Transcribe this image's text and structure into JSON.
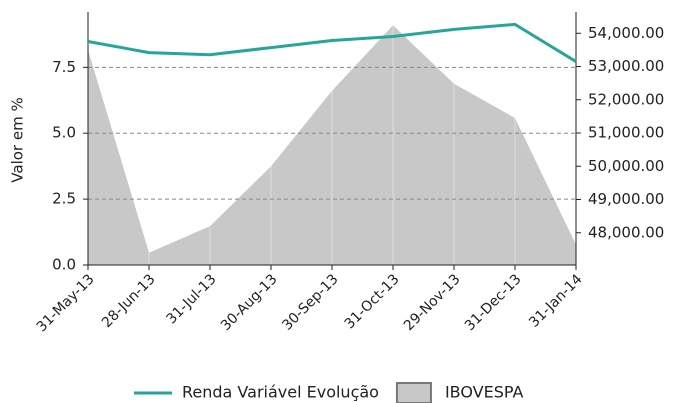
{
  "chart_data": {
    "type": "line-area",
    "y_label": "Valor em %",
    "categories": [
      "31-May-13",
      "28-Jun-13",
      "31-Jul-13",
      "30-Aug-13",
      "30-Sep-13",
      "31-Oct-13",
      "29-Nov-13",
      "31-Dec-13",
      "31-Jan-14"
    ],
    "series": [
      {
        "name": "Renda Variável Evolução",
        "color": "#26a69a",
        "values": [
          8.48,
          8.06,
          7.98,
          8.25,
          8.52,
          8.67,
          8.94,
          9.13,
          7.72
        ]
      },
      {
        "name": "IBOVESPA",
        "color": "#c8c8c8",
        "axis": "y2",
        "values": [
          53500,
          47400,
          48200,
          50000,
          52270,
          54240,
          52480,
          51450,
          47640
        ]
      }
    ],
    "ylim": [
      0,
      9.6
    ],
    "yticks": [
      {
        "value": 0,
        "label": "0.0"
      },
      {
        "value": 2.5,
        "label": "2.5"
      },
      {
        "value": 5,
        "label": "5.0"
      },
      {
        "value": 7.5,
        "label": "7.5"
      }
    ],
    "y2lim": [
      47030,
      54640
    ],
    "y2ticks": [
      {
        "value": 48000,
        "label": "48,000.00"
      },
      {
        "value": 49000,
        "label": "49,000.00"
      },
      {
        "value": 50000,
        "label": "50,000.00"
      },
      {
        "value": 51000,
        "label": "51,000.00"
      },
      {
        "value": 52000,
        "label": "52,000.00"
      },
      {
        "value": 53000,
        "label": "53,000.00"
      },
      {
        "value": 54000,
        "label": "54,000.00"
      }
    ],
    "grid": true,
    "legend": "bottom"
  }
}
